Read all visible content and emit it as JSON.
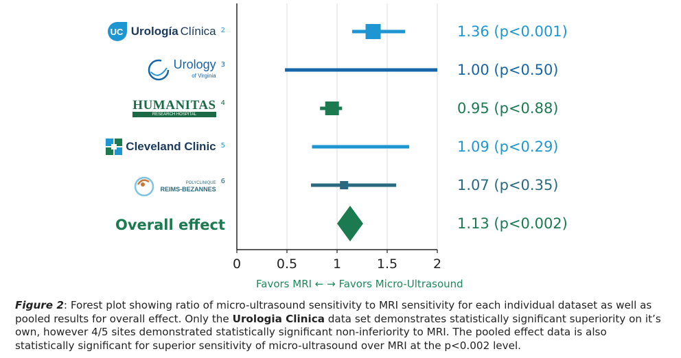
{
  "chart_data": {
    "type": "forest",
    "studies": [
      {
        "label": "Urología Clínica",
        "ref": "2",
        "estimate": 1.36,
        "ci": [
          1.15,
          1.68
        ],
        "display": "1.36 (p<0.001)",
        "color": "#1e96d2"
      },
      {
        "label": "Urology of Virginia",
        "ref": "3",
        "estimate": 1.0,
        "ci": [
          0.48,
          2.0
        ],
        "display": "1.00 (p<0.50)",
        "color": "#1565a8"
      },
      {
        "label": "HUMANITAS Research Hospital",
        "ref": "4",
        "estimate": 0.95,
        "ci": [
          0.83,
          1.05
        ],
        "display": "0.95 (p<0.88)",
        "color": "#1b7a4f"
      },
      {
        "label": "Cleveland Clinic",
        "ref": "5",
        "estimate": 1.09,
        "ci": [
          0.75,
          1.72
        ],
        "display": "1.09 (p<0.29)",
        "color": "#1e96d2"
      },
      {
        "label": "Polyclinique Reims-Bezannes",
        "ref": "6",
        "estimate": 1.07,
        "ci": [
          0.74,
          1.59
        ],
        "display": "1.07 (p<0.35)",
        "color": "#2a6a80"
      },
      {
        "label": "Overall effect",
        "ref": "",
        "estimate": 1.13,
        "ci": [
          1.0,
          1.26
        ],
        "display": "1.13 (p<0.002)",
        "color": "#1b7a4f",
        "pooled": true
      }
    ],
    "xticks": [
      0,
      0.5,
      1,
      1.5,
      2
    ],
    "xlim": [
      0,
      2
    ],
    "xlabel": "Favors MRI ←  → Favors Micro-Ultrasound",
    "grid": "vertical"
  },
  "logos": {
    "urologia": {
      "mark": "UC",
      "name": "Urología",
      "name2": "Clínica",
      "ref": "2"
    },
    "virginia": {
      "name": "Urology",
      "sub": "of Virginia",
      "ref": "3"
    },
    "humanitas": {
      "name": "HUMANITAS",
      "sub": "RESEARCH HOSPITAL",
      "ref": "4"
    },
    "cleveland": {
      "name": "Cleveland Clinic",
      "ref": "5"
    },
    "reims": {
      "top": "POLYCLINIQUE",
      "name": "REIMS-BEZANNES",
      "ref": "6"
    },
    "overall": "Overall effect"
  },
  "caption": {
    "fig": "Figure 2",
    "p1": ": Forest plot showing ratio of micro-ultrasound sensitivity to MRI sensitivity for each individual dataset as well as pooled results for overall effect. Only the ",
    "bold": "Urologia Clinica",
    "p2": " data set demonstrates statistically significant superiority on it’s own, however 4/5 sites demonstrated statistically significant non-inferiority to MRI. The pooled effect data is also statistically significant for superior sensitivity of micro-ultrasound over MRI at the p<0.002 level."
  }
}
